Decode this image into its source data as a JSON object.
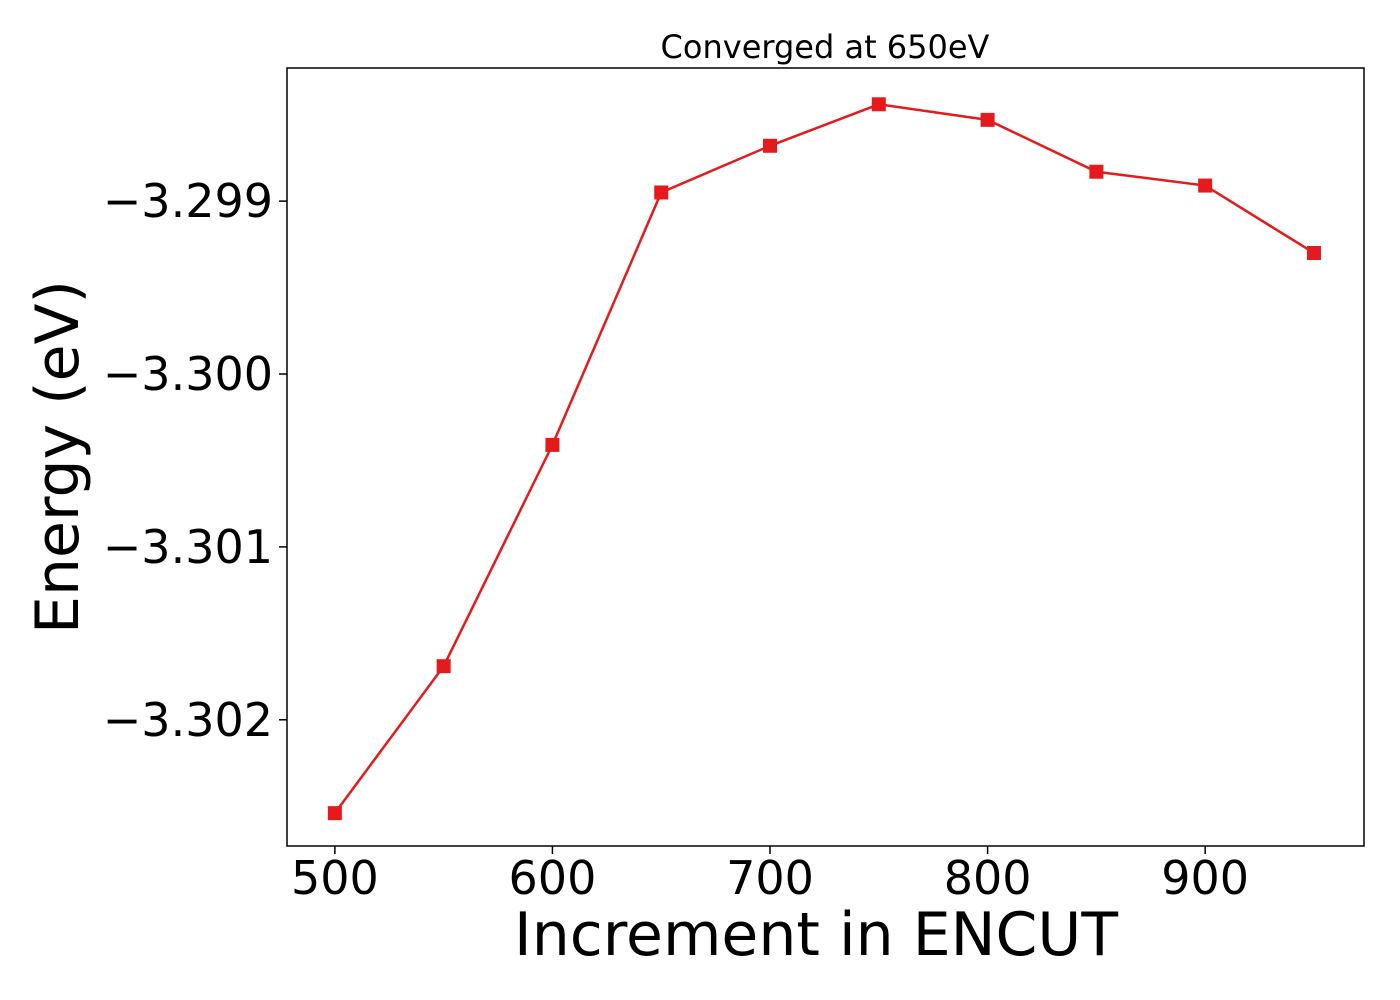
{
  "chart_data": {
    "type": "line",
    "title": "Converged at 650eV",
    "xlabel": "Increment in ENCUT",
    "ylabel": "Energy (eV)",
    "x": [
      500,
      550,
      600,
      650,
      700,
      750,
      800,
      850,
      900,
      950
    ],
    "series": [
      {
        "values": [
          -3.30254,
          -3.30169,
          -3.30041,
          -3.29895,
          -3.29868,
          -3.29844,
          -3.29853,
          -3.29883,
          -3.29891,
          -3.2993
        ],
        "color": "#e41a1c",
        "marker": "square"
      }
    ],
    "xlim": [
      478,
      973
    ],
    "ylim": [
      -3.30273,
      -3.29823
    ],
    "xticks": [
      500,
      600,
      700,
      800,
      900
    ],
    "xtick_labels": [
      "500",
      "600",
      "700",
      "800",
      "900"
    ],
    "yticks": [
      -3.299,
      -3.3,
      -3.301,
      -3.302
    ],
    "ytick_labels": [
      "−3.299",
      "−3.300",
      "−3.301",
      "−3.302"
    ],
    "grid": false,
    "legend": "none"
  }
}
